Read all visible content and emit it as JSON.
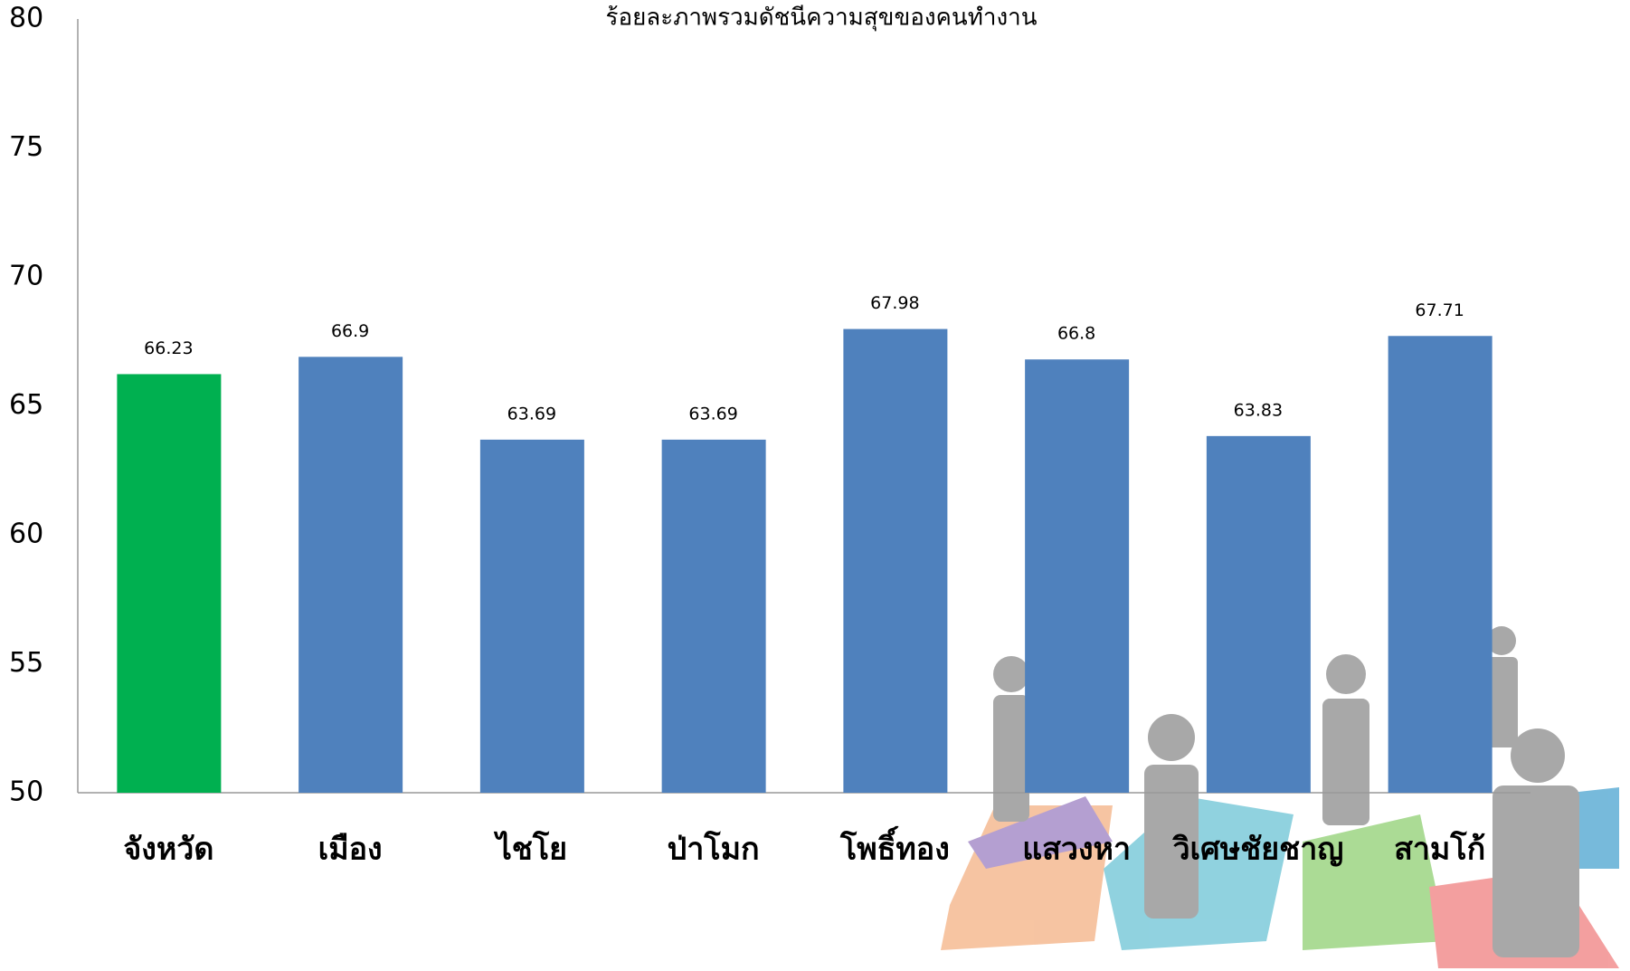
{
  "chart_data": {
    "type": "bar",
    "title": "ร้อยละภาพรวมดัชนีความสุขของคนทำงาน",
    "categories": [
      "จังหวัด",
      "เมือง",
      "ไชโย",
      "ป่าโมก",
      "โพธิ์ทอง",
      "แสวงหา",
      "วิเศษชัยชาญ",
      "สามโก้"
    ],
    "values": [
      66.23,
      66.9,
      63.69,
      63.69,
      67.98,
      66.8,
      63.83,
      67.71
    ],
    "colors": [
      "#00b050",
      "#4f81bd",
      "#4f81bd",
      "#4f81bd",
      "#4f81bd",
      "#4f81bd",
      "#4f81bd",
      "#4f81bd"
    ],
    "ylim": [
      50,
      80
    ],
    "yticks": [
      50,
      55,
      60,
      65,
      70,
      75,
      80
    ],
    "grid": false
  }
}
